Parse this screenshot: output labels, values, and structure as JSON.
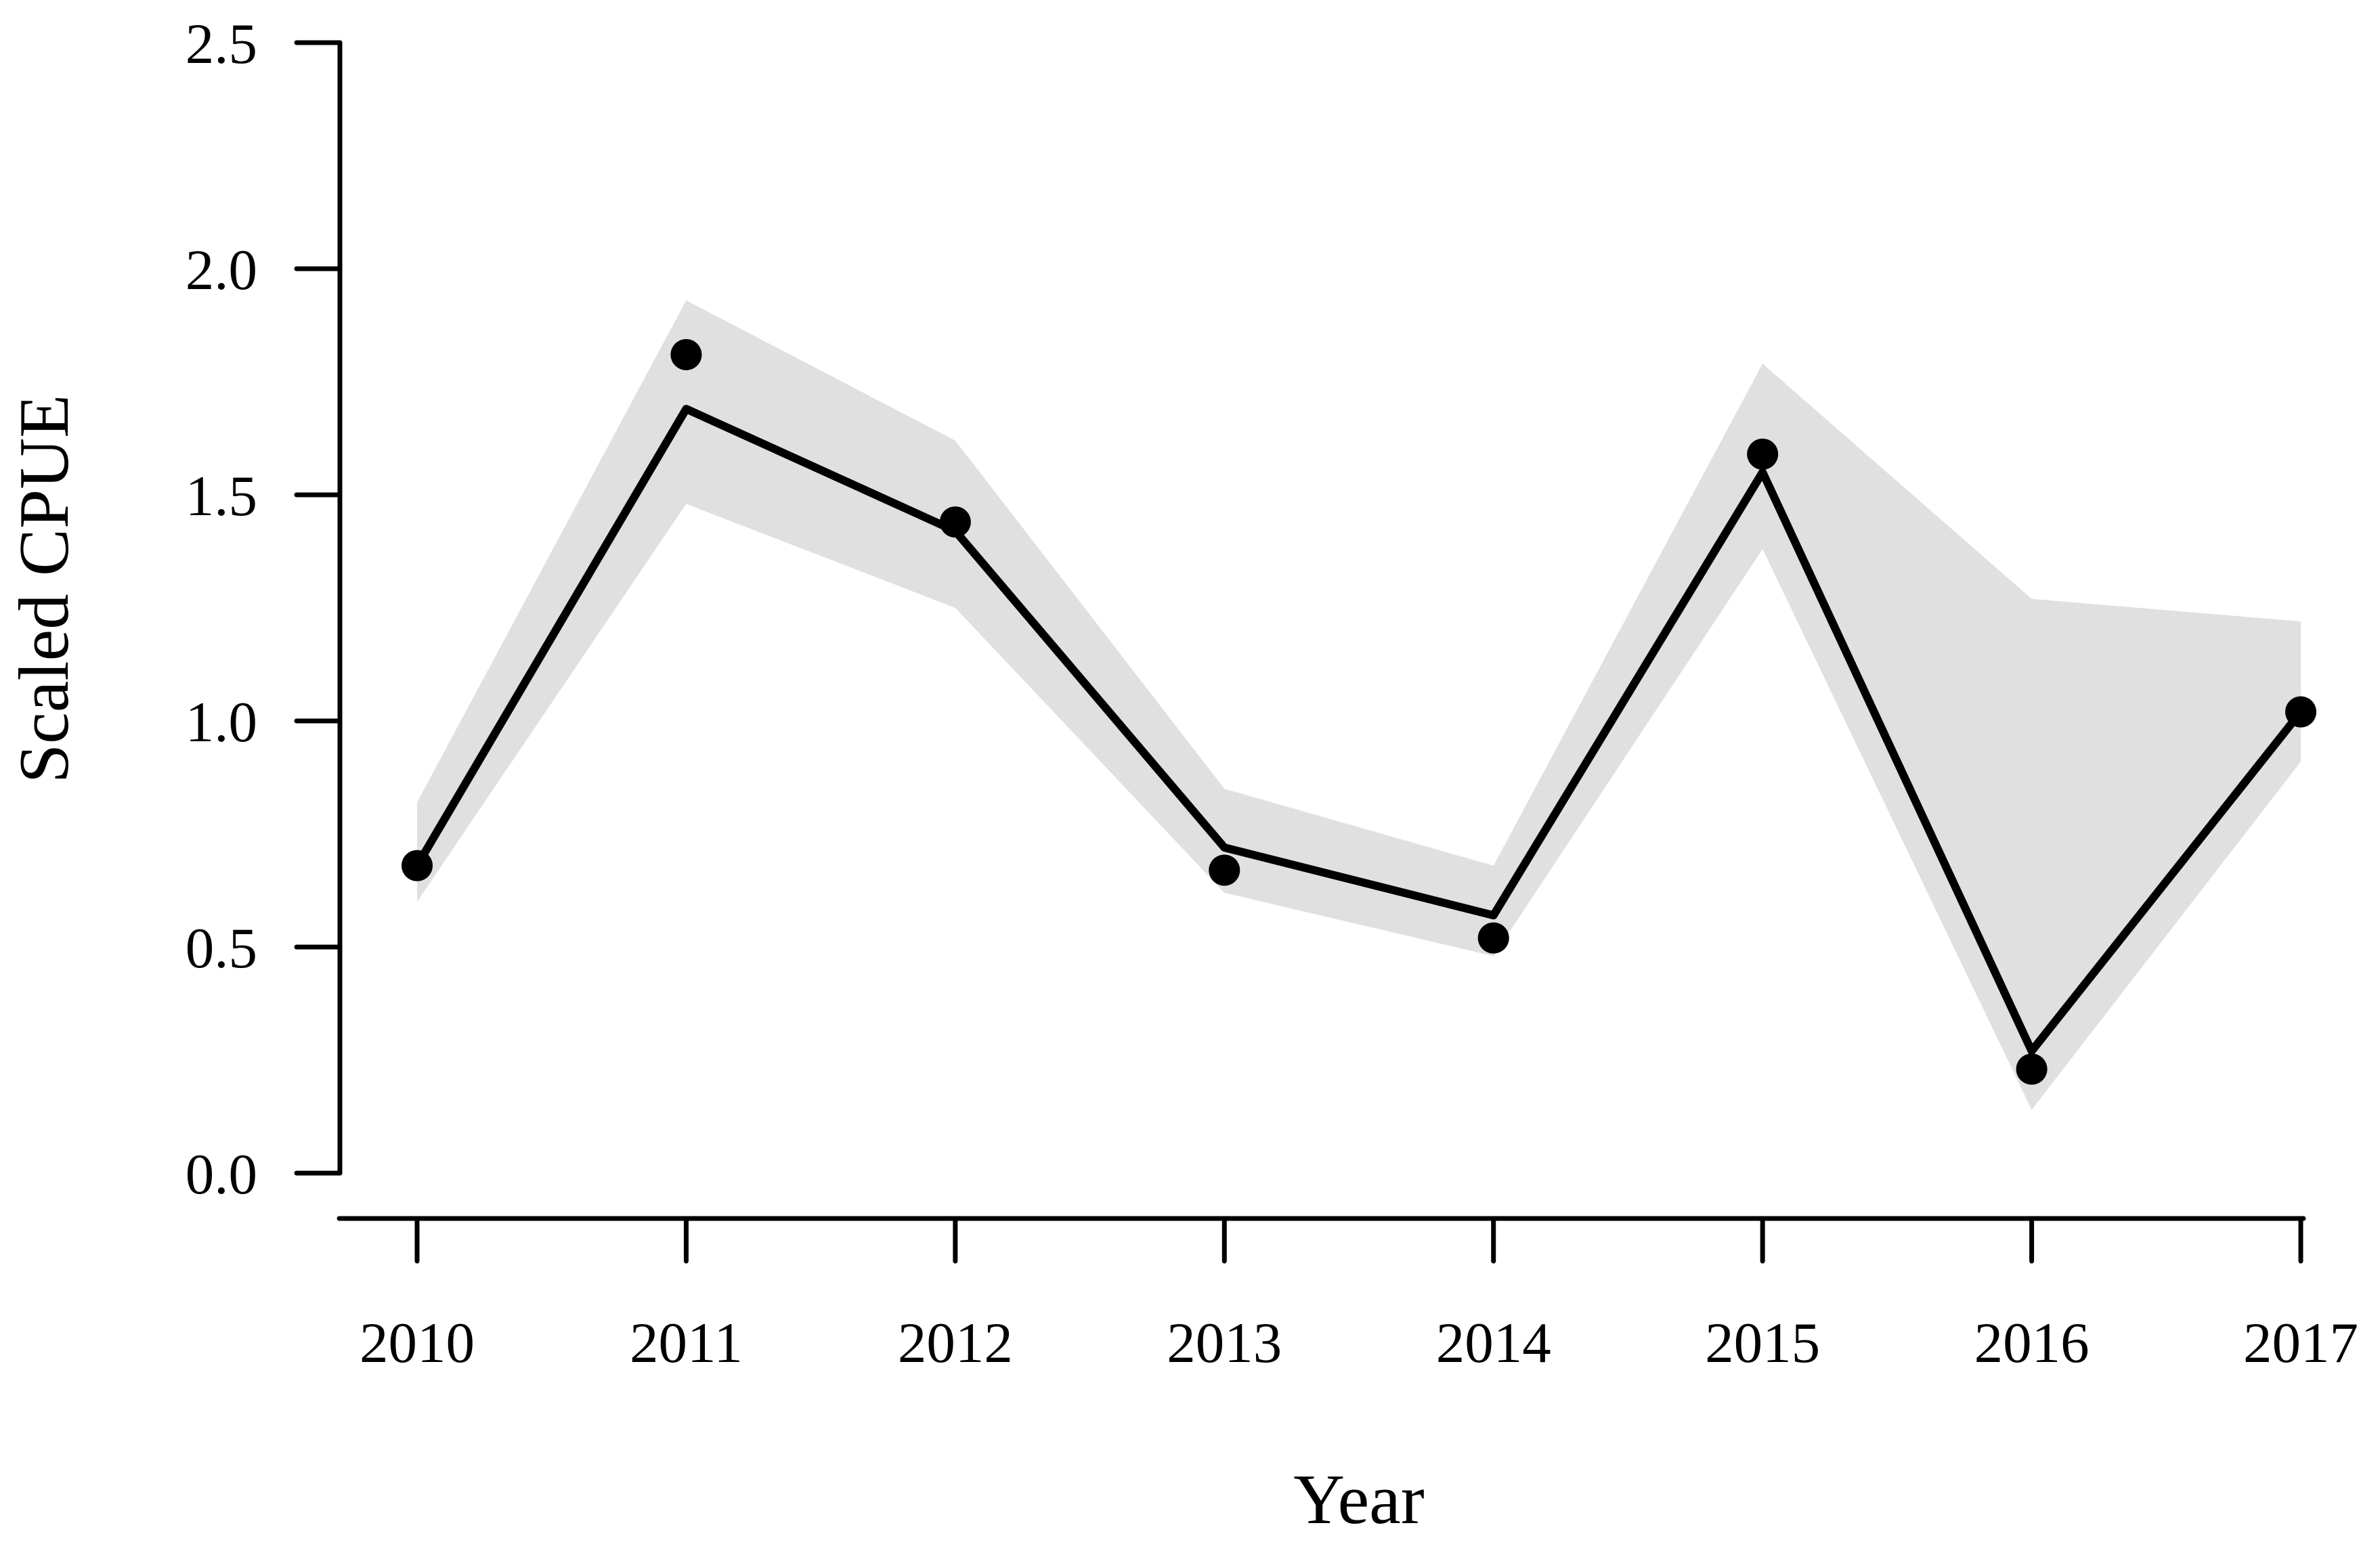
{
  "figure": {
    "background_color": "#ffffff"
  },
  "chart_data": {
    "type": "line",
    "title": "",
    "xlabel": "Year",
    "ylabel": "Scaled CPUE",
    "x": [
      2010,
      2011,
      2012,
      2013,
      2014,
      2015,
      2016,
      2017
    ],
    "x_tick_labels": [
      "2010",
      "2011",
      "2012",
      "2013",
      "2014",
      "2015",
      "2016",
      "2017"
    ],
    "y_ticks": [
      0.0,
      0.5,
      1.0,
      1.5,
      2.0,
      2.5
    ],
    "y_tick_labels": [
      "0.0",
      "0.5",
      "1.0",
      "1.5",
      "2.0",
      "2.5"
    ],
    "xlim": [
      2010,
      2017
    ],
    "ylim": [
      0.0,
      2.5
    ],
    "grid": "off",
    "legend": "none",
    "series": [
      {
        "name": "points",
        "type": "scatter",
        "values": [
          0.68,
          1.81,
          1.44,
          0.67,
          0.52,
          1.59,
          0.23,
          1.02
        ]
      },
      {
        "name": "line",
        "type": "line",
        "values": [
          0.68,
          1.69,
          1.42,
          0.72,
          0.57,
          1.55,
          0.27,
          1.02
        ]
      },
      {
        "name": "band_lower",
        "type": "band",
        "values": [
          0.6,
          1.48,
          1.25,
          0.62,
          0.48,
          1.38,
          0.14,
          0.91
        ]
      },
      {
        "name": "band_upper",
        "type": "band",
        "values": [
          0.82,
          1.93,
          1.62,
          0.85,
          0.68,
          1.79,
          1.27,
          1.22
        ]
      }
    ],
    "colors": {
      "line": "#000000",
      "points": "#000000",
      "band": "#e0e0e0",
      "axis": "#000000",
      "text": "#000000"
    }
  }
}
